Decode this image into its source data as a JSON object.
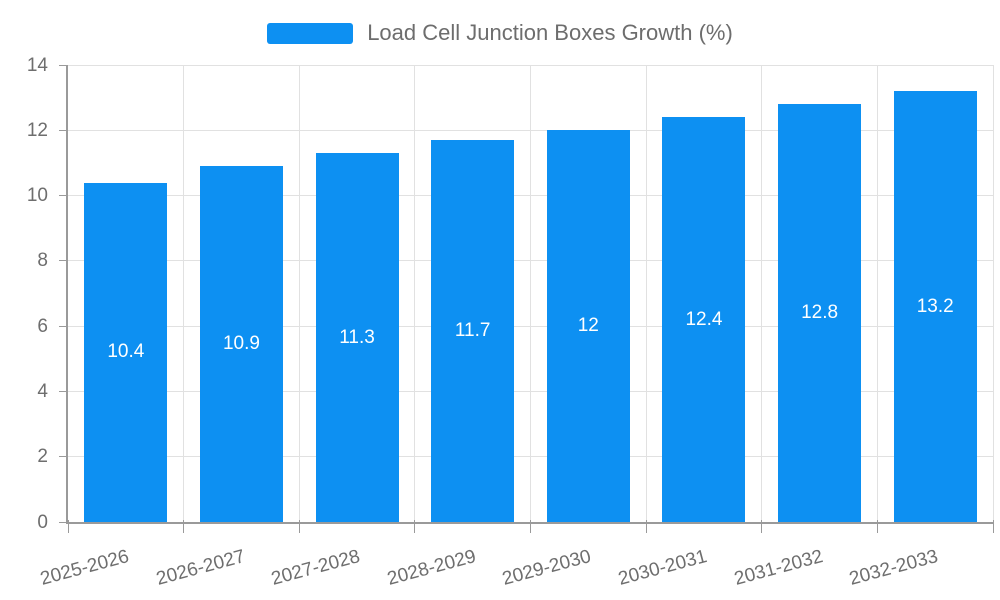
{
  "legend": {
    "label": "Load Cell Junction Boxes Growth (%)"
  },
  "chart_data": {
    "type": "bar",
    "title": "",
    "series_name": "Load Cell Junction Boxes Growth (%)",
    "categories": [
      "2025-2026",
      "2026-2027",
      "2027-2028",
      "2028-2029",
      "2029-2030",
      "2030-2031",
      "2031-2032",
      "2032-2033"
    ],
    "values": [
      10.4,
      10.9,
      11.3,
      11.7,
      12,
      12.4,
      12.8,
      13.2
    ],
    "value_labels": [
      "10.4",
      "10.9",
      "11.3",
      "11.7",
      "12",
      "12.4",
      "12.8",
      "13.2"
    ],
    "xlabel": "",
    "ylabel": "",
    "ylim": [
      0,
      14
    ],
    "yticks": [
      0,
      2,
      4,
      6,
      8,
      10,
      12,
      14
    ],
    "grid": true,
    "legend_position": "top-center",
    "x_label_rotation_deg": -15,
    "value_label_position": "inside-center"
  },
  "colors": {
    "bar": "#0d90f2",
    "grid_line": "#e1e1e1",
    "axis_line": "#9a9a9a",
    "tick_text": "#6e6e6e",
    "legend_text": "#6d6d6d",
    "value_text": "#ffffff",
    "background": "#ffffff"
  }
}
